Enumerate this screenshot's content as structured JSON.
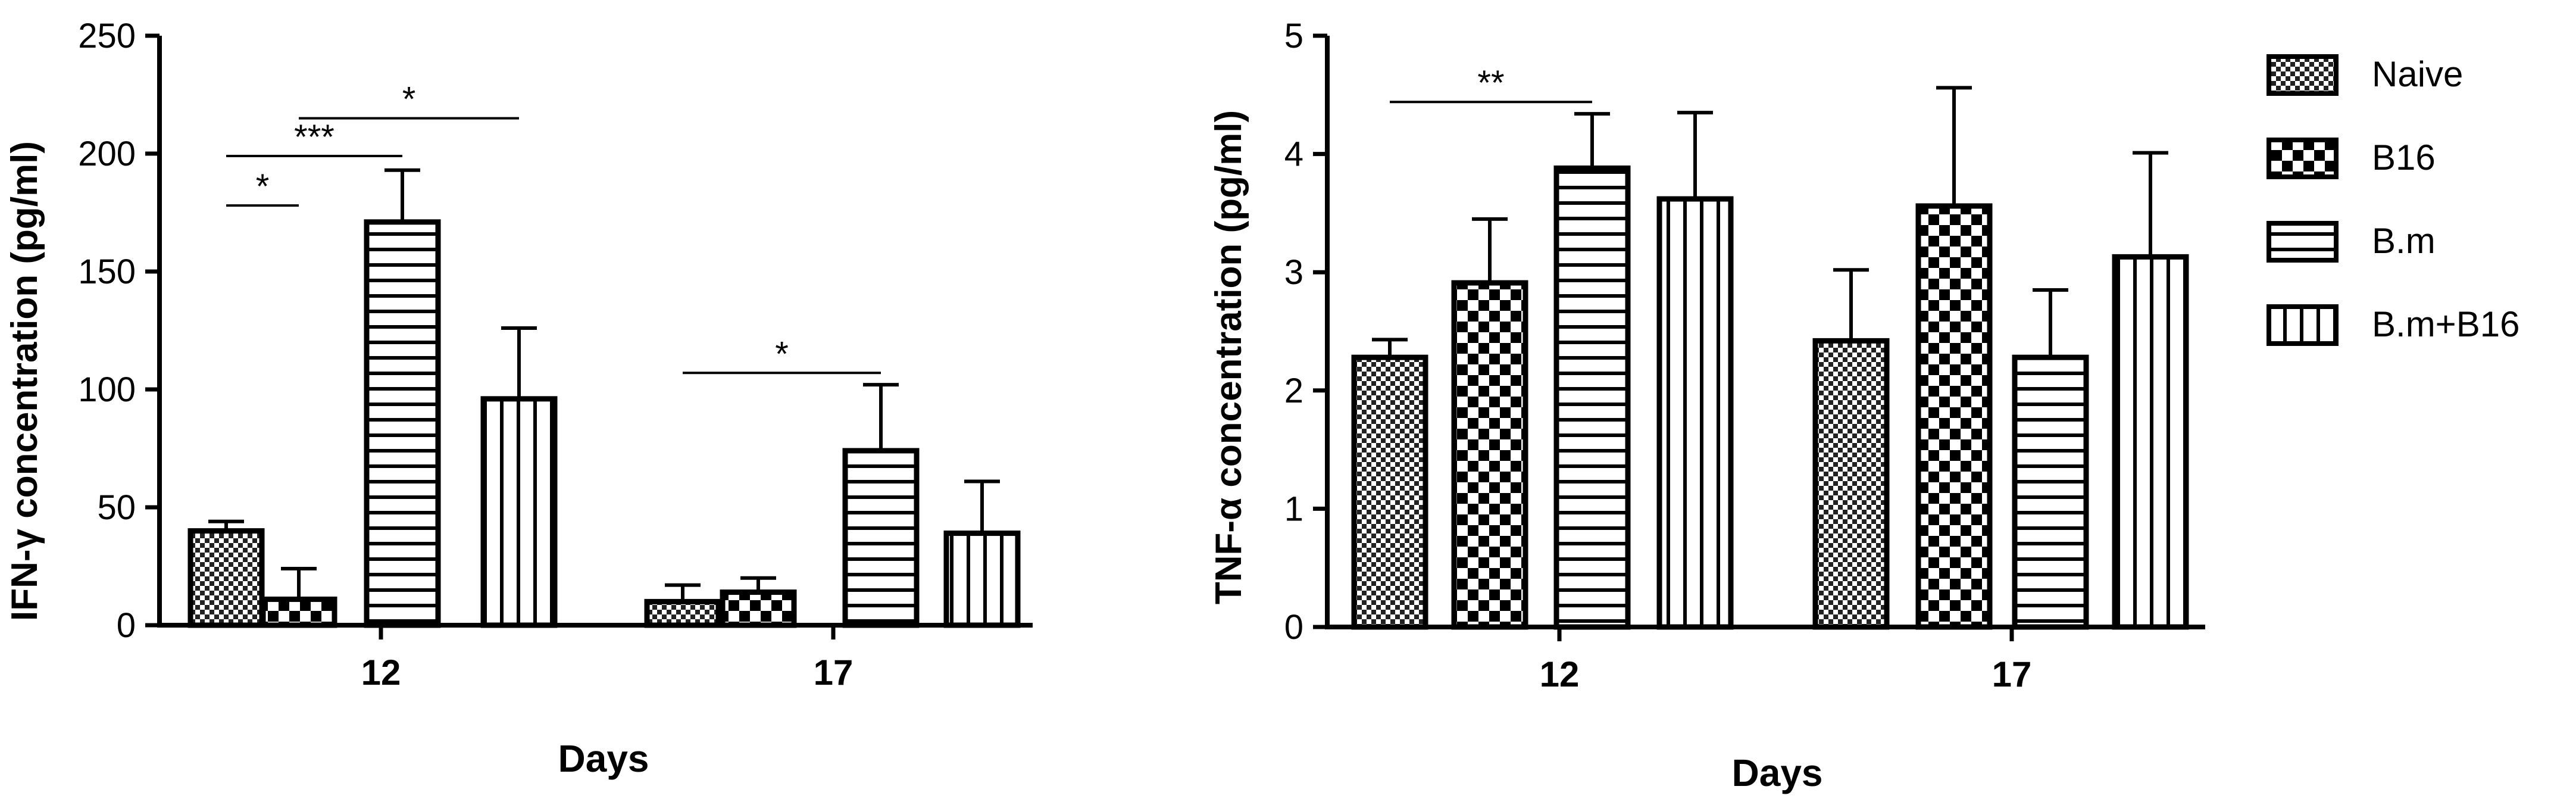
{
  "chart_data": [
    {
      "type": "bar",
      "categories": [
        "12",
        "17"
      ],
      "xlabel": "Days",
      "ylabel": "IFN-γ concentration (pg/ml)",
      "ylim": [
        0,
        250
      ],
      "yticks": [
        "0",
        "50",
        "100",
        "150",
        "200",
        "250"
      ],
      "grid": false,
      "series": [
        {
          "name": "Naive",
          "pattern": "fine-checker",
          "values": [
            40,
            10
          ],
          "errors": [
            4,
            7
          ]
        },
        {
          "name": "B16",
          "pattern": "coarse-checker",
          "values": [
            11,
            14
          ],
          "errors": [
            13,
            6
          ]
        },
        {
          "name": "B.m",
          "pattern": "horizontal-lines",
          "values": [
            171,
            74
          ],
          "errors": [
            22,
            28
          ]
        },
        {
          "name": "B.m+B16",
          "pattern": "vertical-lines",
          "values": [
            96,
            39
          ],
          "errors": [
            30,
            22
          ]
        }
      ],
      "significance": [
        {
          "label": "*",
          "from": [
            0,
            0
          ],
          "to": [
            0,
            1
          ],
          "y": 178
        },
        {
          "label": "***",
          "from": [
            0,
            0
          ],
          "to": [
            0,
            2
          ],
          "y": 199
        },
        {
          "label": "*",
          "from": [
            0,
            1
          ],
          "to": [
            0,
            3
          ],
          "y": 215
        },
        {
          "label": "*",
          "from": [
            1,
            0
          ],
          "to": [
            1,
            2
          ],
          "y": 107
        }
      ]
    },
    {
      "type": "bar",
      "categories": [
        "12",
        "17"
      ],
      "xlabel": "Days",
      "ylabel": "TNF-α concentration (pg/ml)",
      "ylim": [
        0,
        5
      ],
      "yticks": [
        "0",
        "1",
        "2",
        "3",
        "4",
        "5"
      ],
      "grid": false,
      "legend": {
        "position": "right",
        "entries": [
          "Naive",
          "B16",
          "B.m",
          "B.m+B16"
        ]
      },
      "series": [
        {
          "name": "Naive",
          "pattern": "fine-checker",
          "values": [
            2.28,
            2.42
          ],
          "errors": [
            0.15,
            0.6
          ]
        },
        {
          "name": "B16",
          "pattern": "coarse-checker",
          "values": [
            2.91,
            3.56
          ],
          "errors": [
            0.54,
            1.0
          ]
        },
        {
          "name": "B.m",
          "pattern": "horizontal-lines",
          "values": [
            3.88,
            2.28
          ],
          "errors": [
            0.46,
            0.57
          ]
        },
        {
          "name": "B.m+B16",
          "pattern": "vertical-lines",
          "values": [
            3.62,
            3.13
          ],
          "errors": [
            0.73,
            0.88
          ]
        }
      ],
      "significance": [
        {
          "label": "**",
          "from": [
            0,
            0
          ],
          "to": [
            0,
            2
          ],
          "y": 4.44
        }
      ]
    }
  ]
}
